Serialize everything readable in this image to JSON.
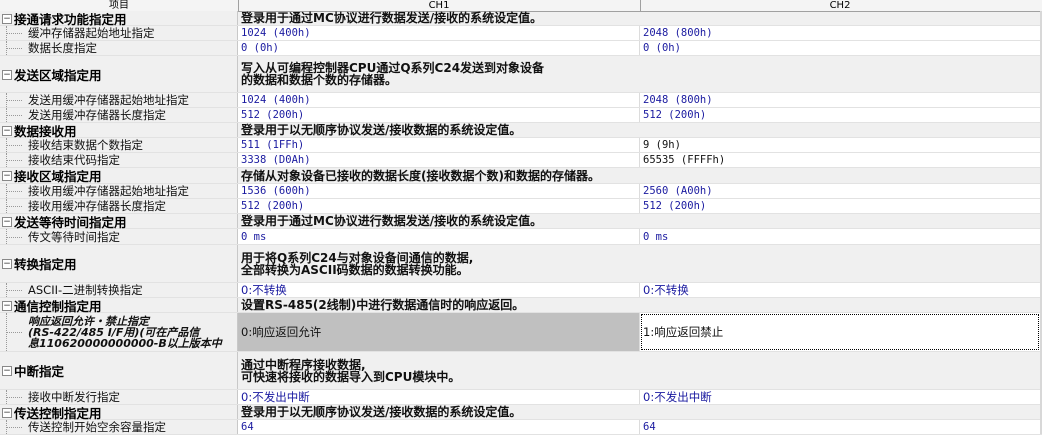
{
  "header": {
    "item": "项目",
    "ch1": "CH1",
    "ch2": "CH2"
  },
  "rows": [
    {
      "type": "group",
      "name": "接通请求功能指定用",
      "desc": "登录用于通过MC协议进行数据发送/接收的系统设定值。"
    },
    {
      "type": "item",
      "name": "缓冲存储器起始地址指定",
      "ch1": "1024 (400h)",
      "ch2": "2048 (800h)"
    },
    {
      "type": "item",
      "name": "数据长度指定",
      "ch1": "0 (0h)",
      "ch2": "0 (0h)"
    },
    {
      "type": "group",
      "name": "发送区域指定用",
      "desc": "写入从可编程控制器CPU通过Q系列C24发送到对象设备\n的数据和数据个数的存储器。"
    },
    {
      "type": "item",
      "name": "发送用缓冲存储器起始地址指定",
      "ch1": "1024 (400h)",
      "ch2": "2048 (800h)"
    },
    {
      "type": "item",
      "name": "发送用缓冲存储器长度指定",
      "ch1": "512 (200h)",
      "ch2": "512 (200h)"
    },
    {
      "type": "group",
      "name": "数据接收用",
      "desc": "登录用于以无顺序协议发送/接收数据的系统设定值。"
    },
    {
      "type": "item",
      "name": "接收结束数据个数指定",
      "ch1": "511 (1FFh)",
      "ch2": "9 (9h)",
      "ch2_changed": true
    },
    {
      "type": "item",
      "name": "接收结束代码指定",
      "ch1": "3338 (D0Ah)",
      "ch2": "65535 (FFFFh)",
      "ch2_changed": true
    },
    {
      "type": "group",
      "name": "接收区域指定用",
      "desc": "存储从对象设备已接收的数据长度(接收数据个数)和数据的存储器。"
    },
    {
      "type": "item",
      "name": "接收用缓冲存储器起始地址指定",
      "ch1": "1536 (600h)",
      "ch2": "2560 (A00h)"
    },
    {
      "type": "item",
      "name": "接收用缓冲存储器长度指定",
      "ch1": "512 (200h)",
      "ch2": "512 (200h)"
    },
    {
      "type": "group",
      "name": "发送等待时间指定用",
      "desc": "登录用于通过MC协议进行数据发送/接收的系统设定值。"
    },
    {
      "type": "item",
      "name": "传文等待时间指定",
      "ch1": "0 ms",
      "ch2": "0 ms"
    },
    {
      "type": "group",
      "name": "转换指定用",
      "desc": "用于将Q系列C24与对象设备间通信的数据,\n全部转换为ASCII码数据的数据转换功能。"
    },
    {
      "type": "item",
      "name": "ASCII-二进制转换指定",
      "ch1": "0:不转换",
      "ch2": "0:不转换"
    },
    {
      "type": "group",
      "name": "通信控制指定用",
      "desc": "设置RS-485(2线制)中进行数据通信时的响应返回。"
    },
    {
      "type": "item",
      "name": "响应返回允许・禁止指定\n(RS-422/485 I/F用)(可在产品信\n息110620000000000-B以上版本中",
      "ch1": "0:响应返回允许",
      "ch2": "1:响应返回禁止",
      "selected": true
    },
    {
      "type": "group",
      "name": "中断指定",
      "desc": "通过中断程序接收数据,\n可快速将接收的数据导入到CPU模块中。"
    },
    {
      "type": "item",
      "name": "接收中断发行指定",
      "ch1": "0:不发出中断",
      "ch2": "0:不发出中断"
    },
    {
      "type": "group",
      "name": "传送控制指定用",
      "desc": "登录用于以无顺序协议发送/接收数据的系统设定值。"
    },
    {
      "type": "item",
      "name": "传送控制开始空余容量指定",
      "ch1": "64",
      "ch2": "64"
    }
  ],
  "colors": {
    "value": "#1a1aa0",
    "changed_value": "#111111",
    "group_bg": "#f0f0f0",
    "selected_gray": "#c0c0c0"
  }
}
